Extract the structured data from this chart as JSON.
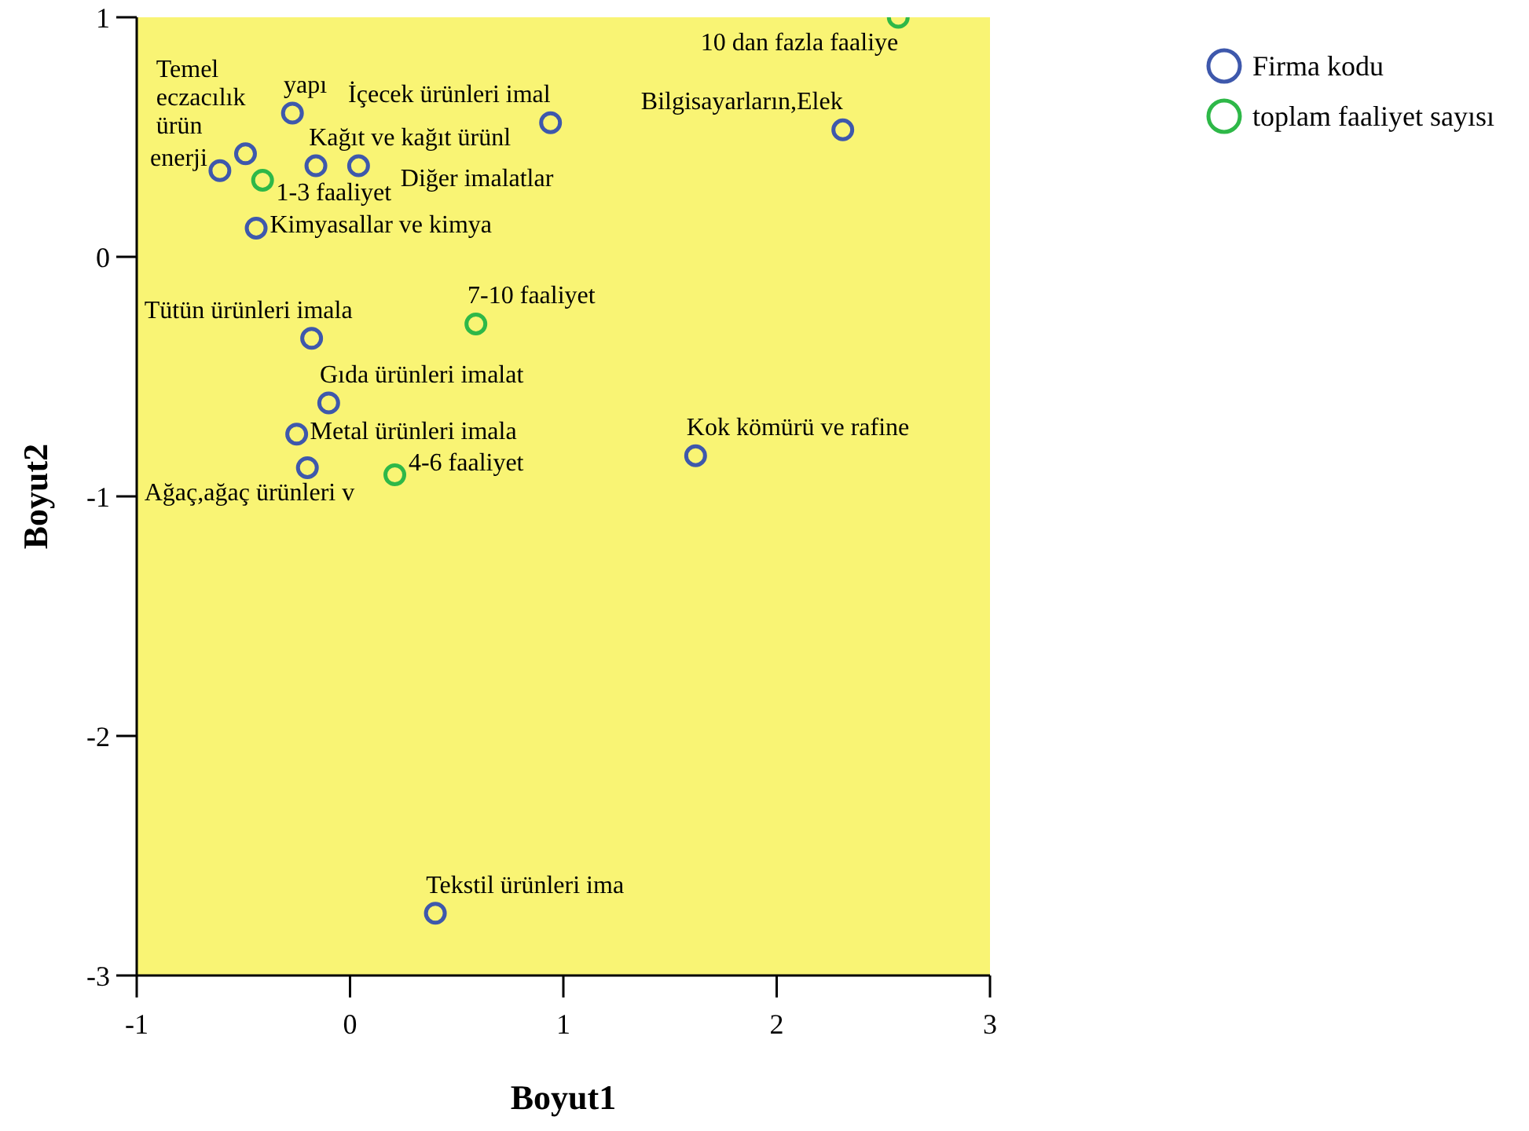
{
  "chart_data": {
    "type": "scatter",
    "xlabel": "Boyut1",
    "ylabel": "Boyut2",
    "xlim": [
      -1,
      3
    ],
    "ylim": [
      -3,
      1
    ],
    "xticks": [
      -1,
      0,
      1,
      2,
      3
    ],
    "yticks": [
      -3,
      -2,
      -1,
      0,
      1
    ],
    "legend": "top right",
    "marker": "circle",
    "series": [
      {
        "name": "Firma kodu",
        "color": "#3e58ac",
        "x": [
          -0.61,
          -0.49,
          -0.16,
          0.04,
          -0.44,
          -0.18,
          -0.27,
          0.94,
          2.31,
          -0.1,
          -0.25,
          -0.2,
          1.62,
          0.4
        ],
        "values": [
          0.36,
          0.43,
          0.38,
          0.38,
          0.12,
          -0.34,
          0.6,
          0.56,
          0.53,
          -0.61,
          -0.74,
          -0.88,
          -0.83,
          -2.74
        ]
      },
      {
        "name": "toplam faaliyet sayısı",
        "color": "#2eb848",
        "x": [
          -0.41,
          2.57,
          0.59,
          0.21
        ],
        "values": [
          0.32,
          1.0,
          -0.28,
          -0.91
        ]
      }
    ],
    "annotations": [
      {
        "text": "enerji",
        "x": -0.61,
        "y": 0.36
      },
      {
        "text": "Temel eczacılık ürün",
        "x": -0.49,
        "y": 0.43
      },
      {
        "text": "Kağıt ve kağıt ürünl",
        "x": -0.16,
        "y": 0.38
      },
      {
        "text": "Diğer imalatlar",
        "x": 0.04,
        "y": 0.38
      },
      {
        "text": "Kimyasallar ve kimya",
        "x": -0.44,
        "y": 0.12
      },
      {
        "text": "Tütün ürünleri imala",
        "x": -0.18,
        "y": -0.34
      },
      {
        "text": "yapı",
        "x": -0.27,
        "y": 0.6
      },
      {
        "text": "İçecek ürünleri imal",
        "x": 0.94,
        "y": 0.56
      },
      {
        "text": "Bilgisayarların,Elek",
        "x": 2.31,
        "y": 0.53
      },
      {
        "text": "Gıda ürünleri imalat",
        "x": -0.1,
        "y": -0.61
      },
      {
        "text": "Metal ürünleri imala",
        "x": -0.25,
        "y": -0.74
      },
      {
        "text": "Ağaç,ağaç ürünleri v",
        "x": -0.2,
        "y": -0.88
      },
      {
        "text": "Kok kömürü ve rafine",
        "x": 1.62,
        "y": -0.83
      },
      {
        "text": "Tekstil ürünleri ima",
        "x": 0.4,
        "y": -2.74
      },
      {
        "text": "1-3 faaliyet",
        "x": -0.41,
        "y": 0.32
      },
      {
        "text": "10 dan fazla faaliye",
        "x": 2.57,
        "y": 1.0
      },
      {
        "text": "7-10 faaliyet",
        "x": 0.59,
        "y": -0.28
      },
      {
        "text": "4-6 faaliyet",
        "x": 0.21,
        "y": -0.91
      }
    ]
  }
}
